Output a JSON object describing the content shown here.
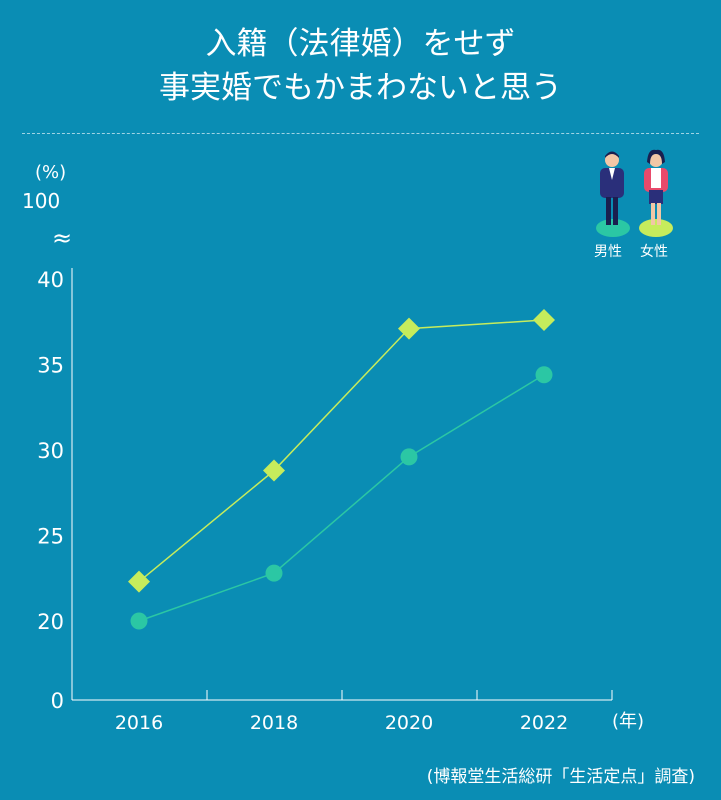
{
  "title": {
    "line1": "入籍（法律婚）をせず",
    "line2": "事実婚でもかまわないと思う"
  },
  "source": "(博報堂生活総研「生活定点」調査)",
  "legend": [
    {
      "label": "男性",
      "color": "#2bc7a4"
    },
    {
      "label": "女性",
      "color": "#c6ec5c"
    }
  ],
  "colors": {
    "background": "#0a8db4",
    "male": "#2bc7a4",
    "female": "#c6ec5c"
  },
  "chart_data": {
    "type": "line",
    "title": "入籍（法律婚）をせず事実婚でもかまわないと思う",
    "ylabel": "(%)",
    "xlabel": "(年)",
    "y_top_label": "100",
    "axis_break": "≈",
    "ylim": [
      0,
      40
    ],
    "y_axis_broken_below": 20,
    "yticks": [
      "0",
      "20",
      "25",
      "30",
      "35",
      "40"
    ],
    "categories": [
      "2016",
      "2018",
      "2020",
      "2022"
    ],
    "grid": false,
    "series": [
      {
        "name": "男性",
        "marker": "circle",
        "color": "#2bc7a4",
        "values": [
          20.0,
          22.8,
          29.6,
          34.4
        ]
      },
      {
        "name": "女性",
        "marker": "diamond",
        "color": "#c6ec5c",
        "values": [
          22.3,
          28.8,
          37.1,
          37.6
        ]
      }
    ]
  }
}
